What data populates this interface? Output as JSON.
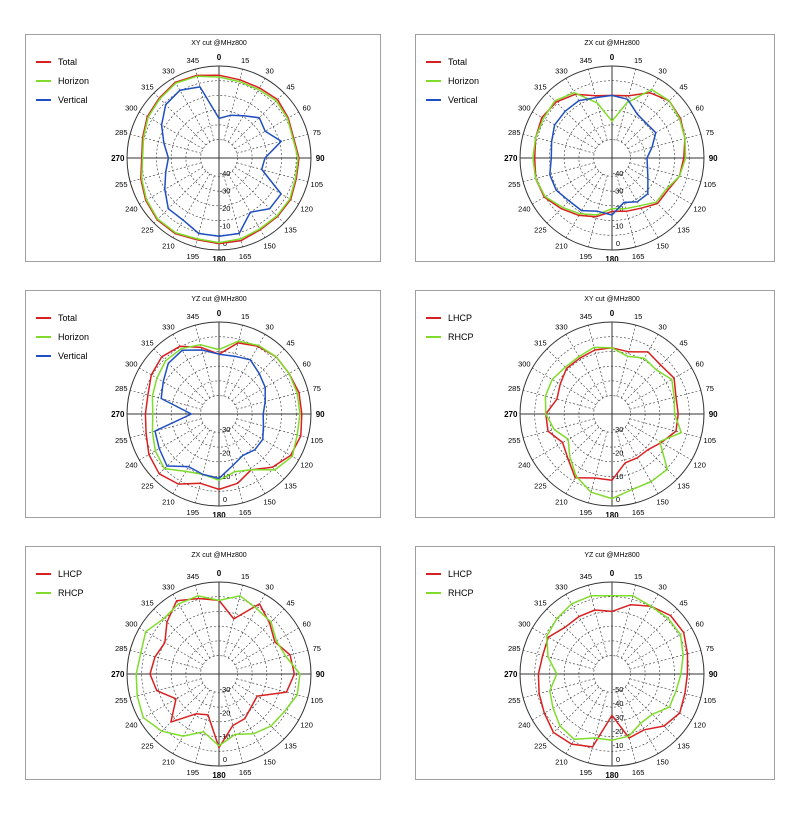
{
  "angle_labels": [
    "0",
    "15",
    "30",
    "45",
    "60",
    "75",
    "90",
    "105",
    "120",
    "135",
    "150",
    "165",
    "180",
    "195",
    "210",
    "225",
    "240",
    "255",
    "270",
    "285",
    "300",
    "315",
    "330",
    "345"
  ],
  "colors": {
    "Total": "#d92020",
    "Horizon": "#7fdc2a",
    "Vertical": "#1f4fc0",
    "LHCP": "#d92020",
    "RHCP": "#7fdc2a"
  },
  "chart_data": [
    {
      "type": "polar",
      "title": "XY cut @MHz800",
      "grid": true,
      "legend": "top-left",
      "r_ticks": [
        "-40",
        "-30",
        "-20",
        "-10",
        "0"
      ],
      "theta_deg": [
        0,
        15,
        30,
        45,
        60,
        75,
        90,
        105,
        120,
        135,
        150,
        165,
        180,
        195,
        210,
        225,
        240,
        255,
        270,
        285,
        300,
        315,
        330,
        345
      ],
      "series": [
        {
          "name": "Total",
          "values": [
            0.9,
            0.88,
            0.88,
            0.9,
            0.87,
            0.84,
            0.87,
            0.87,
            0.9,
            0.9,
            0.9,
            0.93,
            0.93,
            0.92,
            0.95,
            0.95,
            0.92,
            0.88,
            0.84,
            0.86,
            0.9,
            0.92,
            0.95,
            0.93
          ]
        },
        {
          "name": "Horizon",
          "values": [
            0.88,
            0.86,
            0.86,
            0.88,
            0.86,
            0.83,
            0.86,
            0.86,
            0.89,
            0.89,
            0.89,
            0.91,
            0.92,
            0.91,
            0.94,
            0.94,
            0.91,
            0.87,
            0.83,
            0.85,
            0.89,
            0.91,
            0.94,
            0.92
          ]
        },
        {
          "name": "Vertical",
          "values": [
            0.43,
            0.48,
            0.53,
            0.62,
            0.58,
            0.7,
            0.5,
            0.48,
            0.78,
            0.78,
            0.68,
            0.85,
            0.85,
            0.85,
            0.78,
            0.78,
            0.68,
            0.6,
            0.55,
            0.62,
            0.72,
            0.82,
            0.85,
            0.8
          ]
        }
      ]
    },
    {
      "type": "polar",
      "title": "ZX cut @MHz800",
      "grid": true,
      "legend": "top-left",
      "r_ticks": [
        "-40",
        "-30",
        "-20",
        "-10",
        "0"
      ],
      "theta_deg": [
        0,
        15,
        30,
        45,
        60,
        75,
        90,
        105,
        120,
        135,
        150,
        165,
        180,
        195,
        210,
        225,
        240,
        255,
        270,
        285,
        300,
        315,
        330,
        345
      ],
      "series": [
        {
          "name": "Total",
          "values": [
            0.68,
            0.7,
            0.82,
            0.88,
            0.86,
            0.82,
            0.78,
            0.76,
            0.7,
            0.7,
            0.63,
            0.6,
            0.58,
            0.66,
            0.72,
            0.78,
            0.85,
            0.86,
            0.84,
            0.86,
            0.88,
            0.86,
            0.8,
            0.7
          ]
        },
        {
          "name": "Horizon",
          "values": [
            0.4,
            0.62,
            0.86,
            0.88,
            0.85,
            0.82,
            0.8,
            0.76,
            0.68,
            0.68,
            0.6,
            0.57,
            0.55,
            0.64,
            0.7,
            0.76,
            0.84,
            0.86,
            0.86,
            0.86,
            0.86,
            0.88,
            0.82,
            0.62
          ]
        },
        {
          "name": "Vertical",
          "values": [
            0.68,
            0.66,
            0.55,
            0.53,
            0.55,
            0.45,
            0.38,
            0.4,
            0.45,
            0.55,
            0.55,
            0.5,
            0.62,
            0.6,
            0.66,
            0.66,
            0.7,
            0.7,
            0.66,
            0.68,
            0.72,
            0.72,
            0.72,
            0.68
          ]
        }
      ]
    },
    {
      "type": "polar",
      "title": "YZ cut @MHz800",
      "grid": true,
      "legend": "top-left",
      "r_ticks": [
        "-30",
        "-20",
        "-10",
        "0"
      ],
      "theta_deg": [
        0,
        15,
        30,
        45,
        60,
        75,
        90,
        105,
        120,
        135,
        150,
        165,
        180,
        195,
        210,
        225,
        240,
        255,
        270,
        285,
        300,
        315,
        330,
        345
      ],
      "series": [
        {
          "name": "Total",
          "values": [
            0.65,
            0.8,
            0.85,
            0.88,
            0.88,
            0.9,
            0.9,
            0.92,
            0.9,
            0.82,
            0.7,
            0.78,
            0.82,
            0.78,
            0.88,
            0.92,
            0.88,
            0.82,
            0.8,
            0.8,
            0.85,
            0.88,
            0.85,
            0.75
          ]
        },
        {
          "name": "Horizon",
          "values": [
            0.7,
            0.82,
            0.86,
            0.88,
            0.88,
            0.88,
            0.88,
            0.88,
            0.92,
            0.86,
            0.7,
            0.65,
            0.72,
            0.68,
            0.72,
            0.84,
            0.8,
            0.75,
            0.72,
            0.75,
            0.78,
            0.82,
            0.82,
            0.78
          ]
        },
        {
          "name": "Vertical",
          "values": [
            0.65,
            0.65,
            0.68,
            0.62,
            0.58,
            0.52,
            0.48,
            0.5,
            0.55,
            0.55,
            0.52,
            0.58,
            0.7,
            0.68,
            0.66,
            0.8,
            0.75,
            0.72,
            0.3,
            0.65,
            0.7,
            0.78,
            0.8,
            0.72
          ]
        }
      ]
    },
    {
      "type": "polar",
      "title": "XY cut @MHz800",
      "grid": true,
      "legend": "top-left",
      "r_ticks": [
        "-30",
        "-20",
        "-10",
        "0"
      ],
      "theta_deg": [
        0,
        15,
        30,
        45,
        60,
        75,
        90,
        105,
        120,
        135,
        150,
        165,
        180,
        195,
        210,
        225,
        240,
        255,
        270,
        285,
        300,
        315,
        330,
        345
      ],
      "series": [
        {
          "name": "LHCP",
          "values": [
            0.72,
            0.7,
            0.78,
            0.75,
            0.78,
            0.72,
            0.72,
            0.72,
            0.62,
            0.55,
            0.55,
            0.55,
            0.72,
            0.72,
            0.8,
            0.68,
            0.62,
            0.72,
            0.72,
            0.62,
            0.65,
            0.7,
            0.7,
            0.72
          ]
        },
        {
          "name": "RHCP",
          "values": [
            0.72,
            0.65,
            0.7,
            0.68,
            0.75,
            0.7,
            0.68,
            0.78,
            0.6,
            0.85,
            0.85,
            0.85,
            0.92,
            0.88,
            0.78,
            0.65,
            0.55,
            0.65,
            0.72,
            0.75,
            0.75,
            0.72,
            0.72,
            0.75
          ]
        }
      ]
    },
    {
      "type": "polar",
      "title": "ZX cut @MHz800",
      "grid": true,
      "legend": "top-left",
      "r_ticks": [
        "-30",
        "-20",
        "-10",
        "0"
      ],
      "theta_deg": [
        0,
        15,
        30,
        45,
        60,
        75,
        90,
        105,
        120,
        135,
        150,
        165,
        180,
        195,
        210,
        225,
        240,
        255,
        270,
        285,
        300,
        315,
        330,
        345
      ],
      "series": [
        {
          "name": "LHCP",
          "values": [
            0.8,
            0.62,
            0.88,
            0.78,
            0.7,
            0.8,
            0.82,
            0.76,
            0.48,
            0.5,
            0.56,
            0.58,
            0.8,
            0.46,
            0.5,
            0.74,
            0.54,
            0.7,
            0.75,
            0.72,
            0.68,
            0.8,
            0.92,
            0.85
          ]
        },
        {
          "name": "RHCP",
          "values": [
            0.8,
            0.88,
            0.82,
            0.8,
            0.72,
            0.75,
            0.88,
            0.88,
            0.82,
            0.8,
            0.75,
            0.68,
            0.78,
            0.65,
            0.78,
            0.88,
            0.95,
            0.92,
            0.9,
            0.88,
            0.92,
            0.85,
            0.88,
            0.88
          ]
        }
      ]
    },
    {
      "type": "polar",
      "title": "YZ cut @MHz800",
      "grid": true,
      "legend": "top-left",
      "r_ticks": [
        "-50",
        "-40",
        "-30",
        "-20",
        "-10",
        "0"
      ],
      "theta_deg": [
        0,
        15,
        30,
        45,
        60,
        75,
        90,
        105,
        120,
        135,
        150,
        165,
        180,
        195,
        210,
        225,
        240,
        255,
        270,
        285,
        300,
        315,
        330,
        345
      ],
      "series": [
        {
          "name": "LHCP",
          "values": [
            0.68,
            0.78,
            0.85,
            0.9,
            0.9,
            0.85,
            0.82,
            0.82,
            0.85,
            0.8,
            0.7,
            0.72,
            0.45,
            0.82,
            0.88,
            0.9,
            0.85,
            0.82,
            0.8,
            0.78,
            0.8,
            0.72,
            0.72,
            0.72
          ]
        },
        {
          "name": "RHCP",
          "values": [
            0.85,
            0.88,
            0.85,
            0.86,
            0.86,
            0.8,
            0.75,
            0.72,
            0.72,
            0.62,
            0.62,
            0.7,
            0.72,
            0.72,
            0.82,
            0.8,
            0.74,
            0.7,
            0.6,
            0.72,
            0.82,
            0.85,
            0.88,
            0.88
          ]
        }
      ]
    }
  ]
}
